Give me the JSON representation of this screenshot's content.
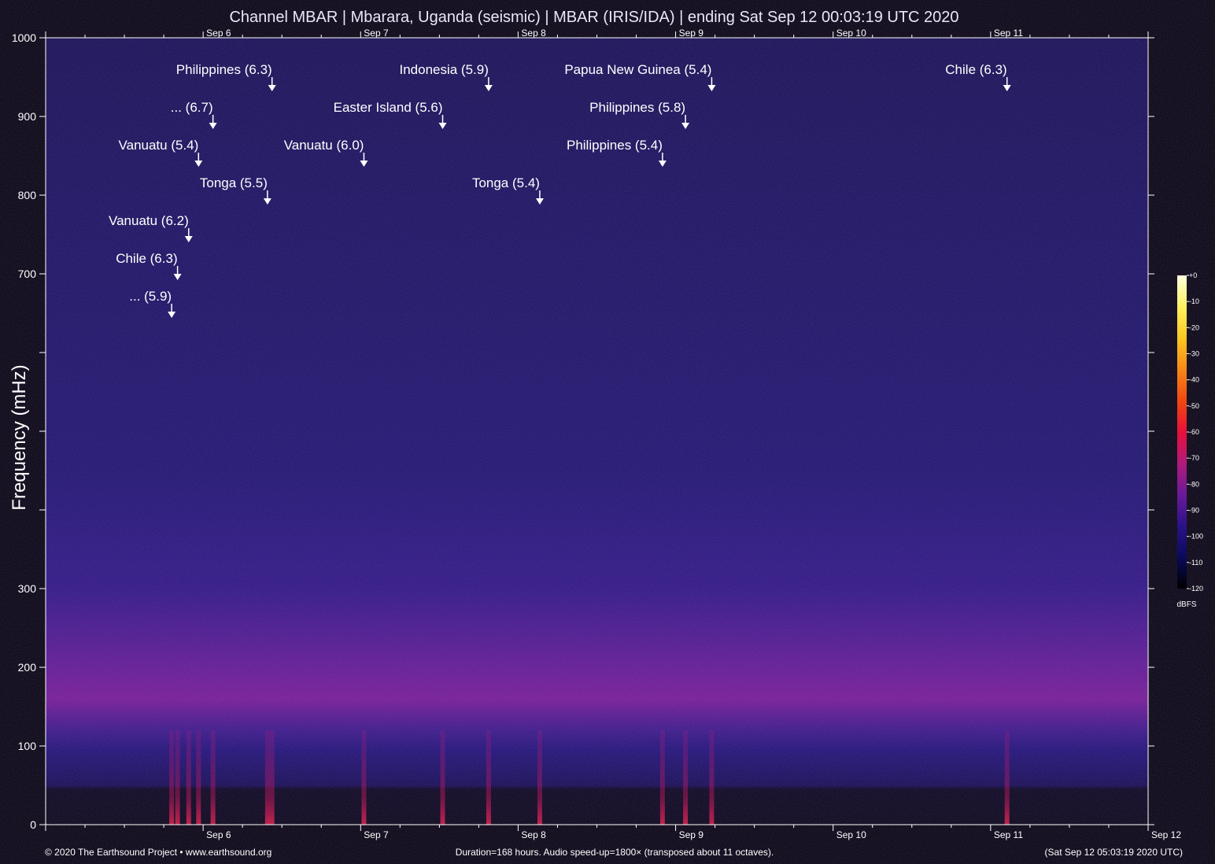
{
  "chart_data": {
    "type": "heatmap",
    "title": "Channel MBAR | Mbarara, Uganda (seismic) | MBAR (IRIS/IDA) | ending Sat Sep 12 00:03:19 UTC 2020",
    "ylabel": "Frequency (mHz)",
    "xlabel": "",
    "ylim": [
      0,
      1000
    ],
    "xlim_hours": [
      0,
      168
    ],
    "y_ticks": [
      {
        "value": 0,
        "label": "0"
      },
      {
        "value": 100,
        "label": "100"
      },
      {
        "value": 200,
        "label": "200"
      },
      {
        "value": 300,
        "label": "300"
      },
      {
        "value": 400,
        "label": ""
      },
      {
        "value": 500,
        "label": ""
      },
      {
        "value": 600,
        "label": ""
      },
      {
        "value": 700,
        "label": "700"
      },
      {
        "value": 800,
        "label": "800"
      },
      {
        "value": 900,
        "label": "900"
      },
      {
        "value": 1000,
        "label": "1000"
      }
    ],
    "x_day_ticks": [
      {
        "hour": 24,
        "label": "Sep 6"
      },
      {
        "hour": 48,
        "label": "Sep 7"
      },
      {
        "hour": 72,
        "label": "Sep 8"
      },
      {
        "hour": 96,
        "label": "Sep 9"
      },
      {
        "hour": 120,
        "label": "Sep 10"
      },
      {
        "hour": 144,
        "label": "Sep 11"
      },
      {
        "hour": 168,
        "label": "Sep 12"
      }
    ],
    "events": [
      {
        "label": "Philippines (6.3)",
        "hour": 34.5,
        "row": 0
      },
      {
        "label": "Indonesia (5.9)",
        "hour": 67.5,
        "row": 0
      },
      {
        "label": "Papua New Guinea (5.4)",
        "hour": 101.5,
        "row": 0
      },
      {
        "label": "Chile (6.3)",
        "hour": 146.5,
        "row": 0
      },
      {
        "label": "... (6.7)",
        "hour": 25.5,
        "row": 1
      },
      {
        "label": "Easter Island (5.6)",
        "hour": 60.5,
        "row": 1
      },
      {
        "label": "Philippines (5.8)",
        "hour": 97.5,
        "row": 1
      },
      {
        "label": "Vanuatu (5.4)",
        "hour": 23.3,
        "row": 2
      },
      {
        "label": "Vanuatu (6.0)",
        "hour": 48.5,
        "row": 2
      },
      {
        "label": "Philippines (5.4)",
        "hour": 94.0,
        "row": 2
      },
      {
        "label": "Tonga (5.5)",
        "hour": 33.8,
        "row": 3
      },
      {
        "label": "Tonga (5.4)",
        "hour": 75.3,
        "row": 3
      },
      {
        "label": "Vanuatu (6.2)",
        "hour": 21.8,
        "row": 4
      },
      {
        "label": "Chile (6.3)",
        "hour": 20.1,
        "row": 5
      },
      {
        "label": "... (5.9)",
        "hour": 19.2,
        "row": 6
      }
    ],
    "colorbar": {
      "unit": "dBFS",
      "range_dbfs": [
        -120,
        0
      ],
      "ticks": [
        "+0",
        "-10",
        "-20",
        "-30",
        "-40",
        "-50",
        "-60",
        "-70",
        "-80",
        "-90",
        "-100",
        "-110",
        "-120"
      ],
      "stops": [
        "#000000",
        "#0a0a5a",
        "#2a1288",
        "#6a1a9a",
        "#b01a7a",
        "#e8103a",
        "#f04810",
        "#f88818",
        "#fcc820",
        "#fff060",
        "#ffffe0"
      ]
    },
    "grid": false,
    "legend": "colorbar-right"
  },
  "footer": {
    "copyright": "© 2020 The Earthsound Project • www.earthsound.org",
    "duration": "Duration=168 hours. Audio speed-up=1800× (transposed about 11 octaves).",
    "timestamp": "(Sat Sep 12 05:03:19 2020 UTC)"
  }
}
